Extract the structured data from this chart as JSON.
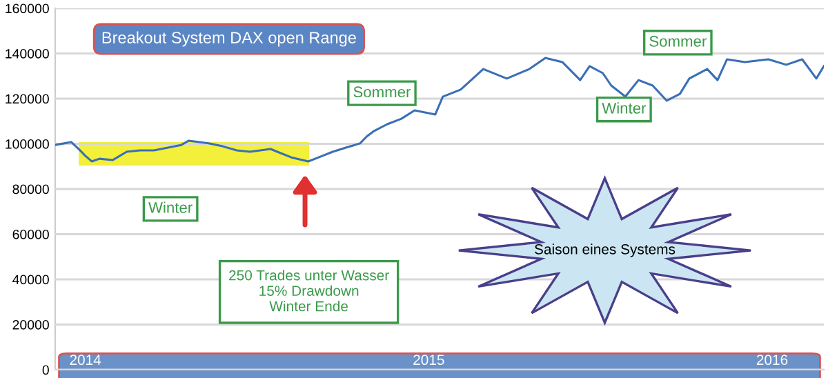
{
  "chart_data": {
    "type": "line",
    "title": "Breakout System DAX open Range",
    "x": [
      "2013-11-30",
      "2013-12-17",
      "2013-12-25",
      "2014-01-01",
      "2014-01-08",
      "2014-01-16",
      "2014-01-30",
      "2014-02-14",
      "2014-02-28",
      "2014-03-15",
      "2014-03-30",
      "2014-04-13",
      "2014-04-21",
      "2014-05-12",
      "2014-05-27",
      "2014-06-11",
      "2014-06-25",
      "2014-07-17",
      "2014-07-24",
      "2014-08-08",
      "2014-08-26",
      "2014-09-06",
      "2014-09-21",
      "2014-10-05",
      "2014-10-20",
      "2014-10-27",
      "2014-11-04",
      "2014-11-18",
      "2014-12-03",
      "2014-12-17",
      "2015-01-08",
      "2015-01-16",
      "2015-02-04",
      "2015-02-28",
      "2015-03-25",
      "2015-04-18",
      "2015-05-05",
      "2015-05-23",
      "2015-06-11",
      "2015-06-21",
      "2015-07-05",
      "2015-07-14",
      "2015-07-29",
      "2015-08-12",
      "2015-08-27",
      "2015-09-11",
      "2015-09-25",
      "2015-10-05",
      "2015-10-24",
      "2015-11-04",
      "2015-11-14",
      "2015-12-03",
      "2015-12-28",
      "2016-01-16",
      "2016-02-02",
      "2016-02-17",
      "2016-02-25"
    ],
    "series": [
      {
        "color": "#3a6fb5",
        "values": [
          99500,
          100800,
          97700,
          94700,
          92200,
          93400,
          92800,
          96500,
          97100,
          97100,
          98300,
          99500,
          101400,
          100200,
          98900,
          97100,
          96500,
          97700,
          96500,
          94000,
          92200,
          94000,
          96500,
          98300,
          100200,
          103200,
          105700,
          108700,
          111100,
          114800,
          113000,
          120900,
          124000,
          133100,
          128900,
          133100,
          138000,
          136200,
          128200,
          134400,
          131300,
          125800,
          120900,
          128200,
          125800,
          119100,
          122100,
          128900,
          133100,
          128200,
          137400,
          136200,
          137400,
          135000,
          137400,
          128900,
          134400
        ]
      }
    ],
    "xlim": [
      "2013-11-30",
      "2016-02-25"
    ],
    "xticks": [
      {
        "value": "2014-01-01",
        "label": "2014"
      },
      {
        "value": "2015-01-01",
        "label": "2015"
      },
      {
        "value": "2016-01-01",
        "label": "2016"
      }
    ],
    "ylim": [
      0,
      160000
    ],
    "yticks": [
      0,
      20000,
      40000,
      60000,
      80000,
      100000,
      120000,
      140000,
      160000
    ],
    "grid": "y",
    "marker": "none",
    "line_style": "solid",
    "bands": [
      {
        "axis": "x",
        "from": "2013-12-25",
        "to": "2014-08-27",
        "color": "#f2f03a"
      }
    ],
    "annotations": [
      "Winter",
      "Sommer",
      "Winter",
      "Sommer",
      "250 Trades unter Wasser\n15% Drawdown\nWinter Ende",
      "Saison eines Systems"
    ]
  }
}
